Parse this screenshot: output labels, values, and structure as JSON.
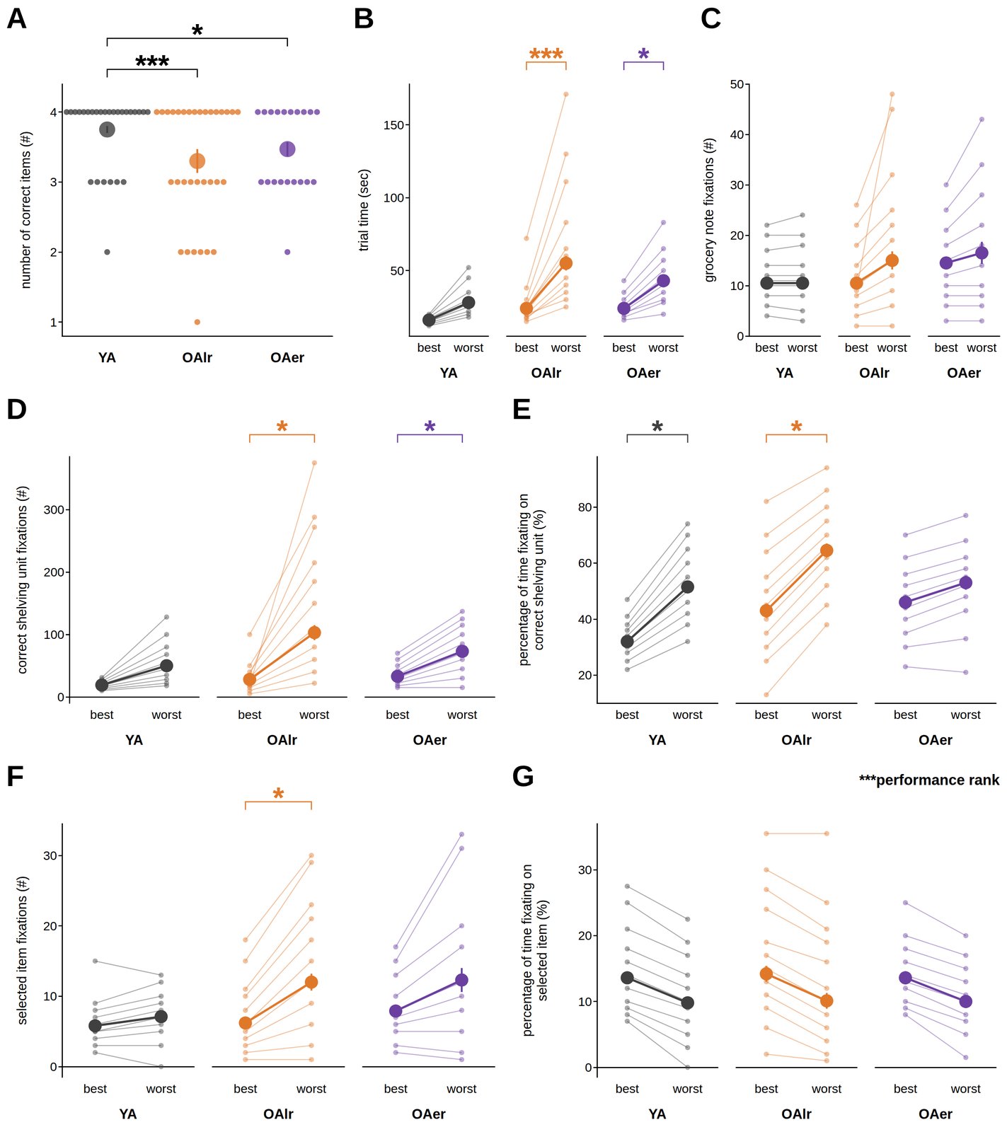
{
  "chart_data": [
    {
      "panel": "A",
      "type": "scatter",
      "y_label": "number of correct items (#)",
      "ylim": [
        0.8,
        4.4
      ],
      "yticks": [
        1,
        2,
        3,
        4
      ],
      "grid": false,
      "categories": [
        "YA",
        "OAlr",
        "OAer"
      ],
      "groups": [
        {
          "name": "YA",
          "color": "#404040",
          "values": [
            4,
            4,
            4,
            4,
            4,
            4,
            4,
            4,
            4,
            4,
            4,
            4,
            4,
            4,
            4,
            4,
            4,
            4,
            4,
            4,
            3,
            3,
            3,
            3,
            3,
            3,
            2
          ],
          "mean": 3.75,
          "err": 0.05
        },
        {
          "name": "OAlr",
          "color": "#E0782A",
          "values": [
            4,
            4,
            4,
            4,
            4,
            4,
            4,
            4,
            4,
            4,
            4,
            4,
            4,
            4,
            4,
            4,
            3,
            3,
            3,
            3,
            3,
            3,
            3,
            3,
            3,
            2,
            2,
            2,
            2,
            2,
            2,
            1
          ],
          "mean": 3.3,
          "err": 0.17
        },
        {
          "name": "OAer",
          "color": "#6B3FA0",
          "values": [
            4,
            4,
            4,
            4,
            4,
            4,
            4,
            4,
            4,
            4,
            3,
            3,
            3,
            3,
            3,
            3,
            3,
            3,
            3,
            2
          ],
          "mean": 3.47,
          "err": 0.1
        }
      ],
      "significance": [
        {
          "between": [
            "YA",
            "OAlr"
          ],
          "label": "***",
          "color": "#000000"
        },
        {
          "between": [
            "YA",
            "OAer"
          ],
          "label": "*",
          "color": "#000000"
        }
      ]
    },
    {
      "panel": "B",
      "type": "line",
      "y_label": "trial time (sec)",
      "ylim": [
        5,
        178
      ],
      "yticks": [
        50,
        100,
        150
      ],
      "grid": false,
      "categories": [
        "best",
        "worst"
      ],
      "groups": [
        {
          "name": "YA",
          "color": "#404040",
          "best": [
            12,
            14,
            15,
            16,
            17,
            18,
            19,
            20,
            15,
            13
          ],
          "worst": [
            18,
            22,
            25,
            28,
            30,
            35,
            45,
            52,
            27,
            20
          ],
          "mean": [
            16,
            28
          ],
          "err": [
            0.7,
            2
          ]
        },
        {
          "name": "OAlr",
          "color": "#E0782A",
          "best": [
            15,
            18,
            20,
            22,
            24,
            26,
            30,
            38,
            72,
            20,
            17,
            25
          ],
          "worst": [
            25,
            35,
            45,
            55,
            65,
            83,
            111,
            130,
            171,
            30,
            40,
            60
          ],
          "mean": [
            24,
            55
          ],
          "err": [
            2,
            5
          ],
          "significance": "***"
        },
        {
          "name": "OAer",
          "color": "#6B3FA0",
          "best": [
            16,
            18,
            20,
            22,
            24,
            26,
            30,
            35,
            43,
            21
          ],
          "worst": [
            20,
            28,
            35,
            40,
            45,
            50,
            57,
            65,
            83,
            30
          ],
          "mean": [
            24,
            43
          ],
          "err": [
            1.5,
            3.5
          ],
          "significance": "*"
        }
      ]
    },
    {
      "panel": "C",
      "type": "line",
      "y_label": "grocery note fixations (#)",
      "ylim": [
        0,
        50
      ],
      "yticks": [
        0,
        10,
        20,
        30,
        40,
        50
      ],
      "grid": false,
      "categories": [
        "best",
        "worst"
      ],
      "groups": [
        {
          "name": "YA",
          "color": "#404040",
          "best": [
            4,
            6,
            8,
            10,
            11,
            12,
            14,
            17,
            20,
            22
          ],
          "worst": [
            3,
            5,
            8,
            10,
            11,
            12,
            14,
            18,
            20,
            24
          ],
          "mean": [
            10.5,
            10.5
          ],
          "err": [
            0.8,
            0.9
          ]
        },
        {
          "name": "OAlr",
          "color": "#E0782A",
          "best": [
            2,
            4,
            6,
            8,
            10,
            12,
            14,
            18,
            22,
            26,
            9
          ],
          "worst": [
            2,
            6,
            9,
            12,
            15,
            19,
            22,
            25,
            32,
            45,
            48
          ],
          "mean": [
            10.5,
            15
          ],
          "err": [
            1,
            1.8
          ]
        },
        {
          "name": "OAer",
          "color": "#6B3FA0",
          "best": [
            3,
            6,
            8,
            10,
            12,
            15,
            18,
            21,
            25,
            30
          ],
          "worst": [
            3,
            6,
            8,
            10,
            14,
            18,
            22,
            28,
            34,
            43
          ],
          "mean": [
            14.5,
            16.5
          ],
          "err": [
            1.3,
            2.2
          ]
        }
      ]
    },
    {
      "panel": "D",
      "type": "line",
      "y_label": "correct shelving unit fixations (#)",
      "ylim": [
        -10,
        385
      ],
      "yticks": [
        0,
        100,
        200,
        300
      ],
      "grid": false,
      "categories": [
        "best",
        "worst"
      ],
      "groups": [
        {
          "name": "YA",
          "color": "#404040",
          "best": [
            10,
            12,
            14,
            16,
            18,
            20,
            22,
            25,
            28,
            31
          ],
          "worst": [
            18,
            22,
            28,
            35,
            45,
            55,
            68,
            80,
            100,
            128
          ],
          "mean": [
            19,
            50
          ],
          "err": [
            1.2,
            5
          ]
        },
        {
          "name": "OAlr",
          "color": "#E0782A",
          "best": [
            5,
            10,
            15,
            20,
            25,
            30,
            40,
            50,
            100,
            18,
            35
          ],
          "worst": [
            22,
            40,
            60,
            80,
            110,
            150,
            185,
            215,
            288,
            375,
            272
          ],
          "mean": [
            28,
            103
          ],
          "err": [
            3,
            12
          ],
          "significance": "*"
        },
        {
          "name": "OAer",
          "color": "#6B3FA0",
          "best": [
            15,
            18,
            22,
            26,
            30,
            35,
            42,
            50,
            60,
            70
          ],
          "worst": [
            15,
            30,
            45,
            60,
            70,
            85,
            100,
            115,
            125,
            137
          ],
          "mean": [
            33,
            73
          ],
          "err": [
            3,
            7
          ],
          "significance": "*"
        }
      ]
    },
    {
      "panel": "E",
      "type": "line",
      "y_label": "percentage of time fixating on\ncorrect shelving unit (%)",
      "ylim": [
        10,
        98
      ],
      "yticks": [
        20,
        40,
        60,
        80
      ],
      "grid": false,
      "categories": [
        "best",
        "worst"
      ],
      "groups": [
        {
          "name": "YA",
          "color": "#404040",
          "best": [
            22,
            25,
            28,
            30,
            32,
            34,
            36,
            38,
            41,
            47
          ],
          "worst": [
            32,
            38,
            42,
            46,
            50,
            55,
            60,
            65,
            70,
            74
          ],
          "mean": [
            32,
            51.5
          ],
          "err": [
            1.2,
            2
          ],
          "significance": "*"
        },
        {
          "name": "OAlr",
          "color": "#E0782A",
          "best": [
            13,
            25,
            30,
            35,
            40,
            45,
            50,
            55,
            64,
            70,
            82
          ],
          "worst": [
            38,
            45,
            52,
            58,
            62,
            66,
            70,
            75,
            80,
            86,
            94
          ],
          "mean": [
            43,
            64.5
          ],
          "err": [
            2.5,
            2.5
          ],
          "significance": "*"
        },
        {
          "name": "OAer",
          "color": "#6B3FA0",
          "best": [
            23,
            30,
            35,
            40,
            44,
            48,
            52,
            56,
            62,
            70
          ],
          "worst": [
            21,
            33,
            43,
            48,
            52,
            55,
            58,
            62,
            68,
            77
          ],
          "mean": [
            46,
            53
          ],
          "err": [
            2.5,
            2.5
          ]
        }
      ]
    },
    {
      "panel": "F",
      "type": "line",
      "y_label": "selected item fixations (#)",
      "ylim": [
        -1.5,
        34.5
      ],
      "yticks": [
        0,
        10,
        20,
        30
      ],
      "grid": false,
      "categories": [
        "best",
        "worst"
      ],
      "groups": [
        {
          "name": "YA",
          "color": "#404040",
          "best": [
            2,
            3,
            4,
            5,
            5,
            6,
            7,
            8,
            9,
            15
          ],
          "worst": [
            0,
            3,
            5,
            6,
            7,
            8,
            9,
            10,
            12,
            13
          ],
          "mean": [
            5.8,
            7.1
          ],
          "err": [
            0.5,
            0.6
          ]
        },
        {
          "name": "OAlr",
          "color": "#E0782A",
          "best": [
            1,
            2,
            3,
            4,
            5,
            6,
            8,
            10,
            11,
            15,
            18
          ],
          "worst": [
            1,
            3,
            6,
            9,
            12,
            15,
            18,
            21,
            23,
            29,
            30
          ],
          "mean": [
            6.2,
            12
          ],
          "err": [
            0.6,
            1.2
          ],
          "significance": "*"
        },
        {
          "name": "OAer",
          "color": "#6B3FA0",
          "best": [
            2,
            3,
            5,
            6,
            7,
            8,
            10,
            13,
            15,
            17
          ],
          "worst": [
            1,
            2,
            5,
            8,
            10,
            12,
            17,
            20,
            31,
            33
          ],
          "mean": [
            7.9,
            12.3
          ],
          "err": [
            0.8,
            1.7
          ]
        }
      ]
    },
    {
      "panel": "G",
      "type": "line",
      "y_label": "percentage of time fixating on\nselected item (%)",
      "ylim": [
        -1.5,
        37
      ],
      "yticks": [
        0,
        10,
        20,
        30
      ],
      "grid": false,
      "annotation": "***performance rank",
      "categories": [
        "best",
        "worst"
      ],
      "groups": [
        {
          "name": "YA",
          "color": "#404040",
          "best": [
            7,
            8,
            9,
            10,
            12,
            14,
            16,
            18,
            21,
            25,
            27.5
          ],
          "worst": [
            0,
            3,
            5,
            7,
            9,
            10,
            12,
            14,
            17,
            19,
            22.5
          ],
          "mean": [
            13.6,
            9.8
          ],
          "err": [
            0.9,
            0.9
          ]
        },
        {
          "name": "OAlr",
          "color": "#E0782A",
          "best": [
            2,
            6,
            9,
            11,
            13,
            15,
            17,
            19,
            24,
            27,
            30,
            35.5
          ],
          "worst": [
            1,
            2,
            4,
            6,
            8,
            10,
            12,
            16,
            19,
            21,
            25,
            35.5
          ],
          "mean": [
            14.2,
            10.1
          ],
          "err": [
            1.2,
            1.2
          ]
        },
        {
          "name": "OAer",
          "color": "#6B3FA0",
          "best": [
            8,
            9,
            10,
            12,
            13,
            14,
            16,
            18,
            20,
            25
          ],
          "worst": [
            1.5,
            5,
            7,
            8,
            10,
            11,
            13,
            15,
            17,
            20
          ],
          "mean": [
            13.6,
            10.0
          ],
          "err": [
            1,
            1
          ]
        }
      ]
    }
  ]
}
